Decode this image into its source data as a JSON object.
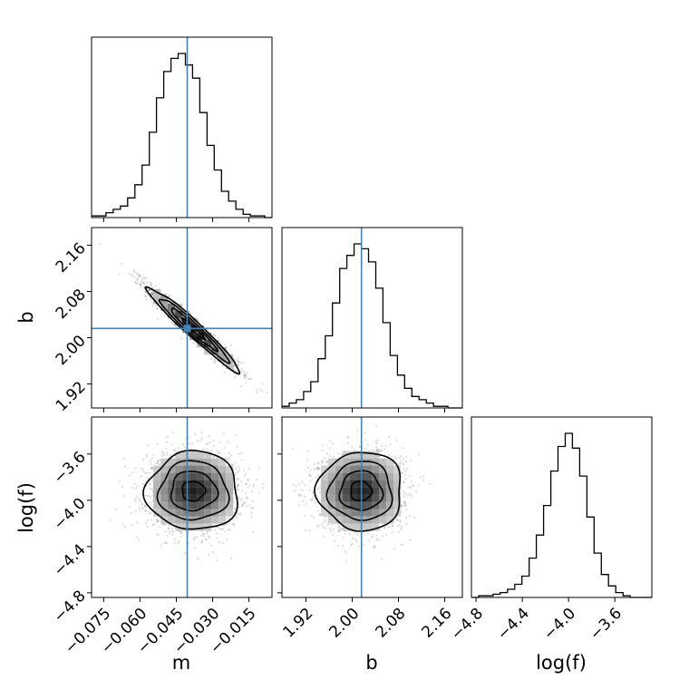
{
  "chart_data": {
    "type": "corner",
    "parameters": [
      {
        "name": "m",
        "label": "m",
        "range": [
          -0.08,
          -0.0055
        ],
        "ticks": [
          "−0.075",
          "−0.060",
          "−0.045",
          "−0.030",
          "−0.015"
        ],
        "tick_values": [
          -0.075,
          -0.06,
          -0.045,
          -0.03,
          -0.015
        ],
        "truth": -0.0405
      },
      {
        "name": "b",
        "label": "b",
        "range": [
          1.8785,
          2.1905
        ],
        "ticks": [
          "1.92",
          "2.00",
          "2.08",
          "2.16"
        ],
        "tick_values": [
          1.92,
          2.0,
          2.08,
          2.16
        ],
        "truth": 2.016
      },
      {
        "name": "log(f)",
        "label": "log(f)",
        "range": [
          -4.84,
          -3.28
        ],
        "ticks": [
          "−4.8",
          "−4.4",
          "−4.0",
          "−3.6"
        ],
        "tick_values": [
          -4.8,
          -4.4,
          -4.0,
          -3.6
        ],
        "truth": null
      }
    ],
    "histograms": {
      "m": [
        0.01,
        0.01,
        0.03,
        0.05,
        0.07,
        0.12,
        0.2,
        0.32,
        0.52,
        0.73,
        0.89,
        0.97,
        1.0,
        0.93,
        0.85,
        0.64,
        0.44,
        0.29,
        0.16,
        0.1,
        0.05,
        0.02,
        0.01,
        0.01,
        0.0
      ],
      "b": [
        0.01,
        0.03,
        0.05,
        0.1,
        0.16,
        0.3,
        0.44,
        0.64,
        0.85,
        0.93,
        1.0,
        0.97,
        0.89,
        0.73,
        0.52,
        0.32,
        0.2,
        0.12,
        0.07,
        0.05,
        0.03,
        0.01,
        0.01,
        0.0,
        0.0
      ],
      "log(f)": [
        0.0,
        0.01,
        0.01,
        0.02,
        0.03,
        0.05,
        0.08,
        0.13,
        0.24,
        0.38,
        0.56,
        0.77,
        0.92,
        1.0,
        0.91,
        0.74,
        0.49,
        0.27,
        0.14,
        0.07,
        0.03,
        0.01,
        0.0,
        0.0,
        0.0
      ]
    },
    "correlation_m_b": -0.97,
    "color_truth": "#4682b4",
    "color_lines": "#000000"
  }
}
